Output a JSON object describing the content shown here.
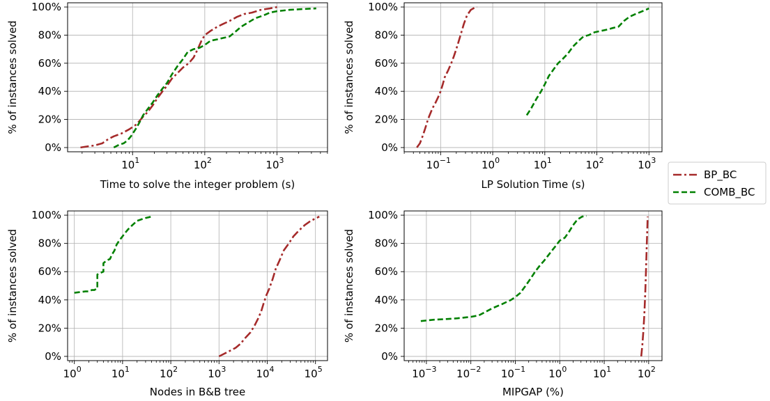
{
  "colors": {
    "bp_bc": "#a52a2a",
    "comb_bc": "#008000",
    "grid": "#b0b0b0"
  },
  "legend": {
    "placement": "right-center",
    "entries": [
      {
        "label": "BP_BC",
        "color": "#a52a2a",
        "style": "dash-dot"
      },
      {
        "label": "COMB_BC",
        "color": "#008000",
        "style": "dashed"
      }
    ]
  },
  "chart_data": [
    {
      "type": "line",
      "xlabel": "Time to solve the integer problem (s)",
      "ylabel": "% of instances solved",
      "xscale": "log",
      "xlim_exp": [
        0.1,
        3.7
      ],
      "ylim": [
        -3,
        103
      ],
      "xticks": [
        {
          "exp": 1,
          "label": "10"
        },
        {
          "exp": 2,
          "label": "10"
        },
        {
          "exp": 3,
          "label": "10"
        }
      ],
      "xtick_sup": [
        "1",
        "2",
        "3"
      ],
      "yticks": [
        0,
        20,
        40,
        60,
        80,
        100
      ],
      "ytick_labels": [
        "0%",
        "20%",
        "40%",
        "60%",
        "80%",
        "100%"
      ],
      "grid": true,
      "series": [
        {
          "name": "BP_BC",
          "x": [
            1.9,
            2.5,
            3,
            3.8,
            4.6,
            5.5,
            7,
            9,
            11,
            12.5,
            14,
            16,
            19,
            22,
            26,
            30,
            35,
            42,
            50,
            60,
            70,
            80,
            90,
            100,
            120,
            150,
            180,
            220,
            280,
            350,
            450,
            600,
            800,
            1000
          ],
          "y": [
            0,
            1,
            1.5,
            3,
            6,
            8,
            10,
            13,
            16,
            19,
            22,
            25,
            30,
            35,
            40,
            44,
            49,
            53,
            57,
            60,
            64,
            70,
            76,
            80,
            83,
            86,
            88,
            90,
            93,
            95,
            96,
            98,
            99,
            100
          ]
        },
        {
          "name": "COMB_BC",
          "x": [
            5.5,
            6.5,
            7.5,
            8.5,
            9.5,
            11,
            12.5,
            14,
            16,
            19,
            22,
            26,
            30,
            35,
            42,
            50,
            58,
            70,
            85,
            100,
            120,
            150,
            180,
            220,
            260,
            320,
            400,
            500,
            650,
            800,
            1000,
            1500,
            2200,
            3500
          ],
          "y": [
            0,
            2,
            3,
            5,
            8,
            13,
            18,
            23,
            27,
            32,
            37,
            42,
            46,
            52,
            58,
            63,
            68,
            70,
            71,
            73,
            76,
            77,
            78,
            79,
            82,
            86,
            89,
            92,
            94,
            96,
            97,
            98,
            98.5,
            99
          ]
        }
      ]
    },
    {
      "type": "line",
      "xlabel": "LP Solution Time (s)",
      "ylabel": "% of instances solved",
      "xscale": "log",
      "xlim_exp": [
        -1.7,
        3.25
      ],
      "ylim": [
        -3,
        103
      ],
      "xticks": [
        {
          "exp": -1,
          "label": "10"
        },
        {
          "exp": 0,
          "label": "10"
        },
        {
          "exp": 1,
          "label": "10"
        },
        {
          "exp": 2,
          "label": "10"
        },
        {
          "exp": 3,
          "label": "10"
        }
      ],
      "xtick_sup": [
        "−1",
        "0",
        "1",
        "2",
        "3"
      ],
      "yticks": [
        0,
        20,
        40,
        60,
        80,
        100
      ],
      "ytick_labels": [
        "0%",
        "20%",
        "40%",
        "60%",
        "80%",
        "100%"
      ],
      "grid": true,
      "series": [
        {
          "name": "BP_BC",
          "x": [
            0.035,
            0.04,
            0.045,
            0.05,
            0.055,
            0.06,
            0.07,
            0.08,
            0.09,
            0.1,
            0.11,
            0.12,
            0.14,
            0.16,
            0.18,
            0.2,
            0.22,
            0.25,
            0.28,
            0.32,
            0.38,
            0.45,
            0.5
          ],
          "y": [
            0,
            3,
            8,
            13,
            18,
            22,
            28,
            32,
            36,
            40,
            45,
            50,
            55,
            60,
            65,
            70,
            75,
            82,
            88,
            94,
            98,
            99.5,
            100
          ]
        },
        {
          "name": "COMB_BC",
          "x": [
            4.5,
            5.5,
            7,
            8.5,
            10,
            12,
            15,
            18,
            22,
            28,
            35,
            45,
            55,
            70,
            90,
            120,
            160,
            200,
            260,
            330,
            420,
            550,
            750,
            1000
          ],
          "y": [
            23,
            28,
            35,
            40,
            45,
            51,
            56,
            60,
            63,
            67,
            72,
            76,
            79,
            80,
            82,
            83,
            84,
            85,
            86,
            90,
            93,
            95,
            97,
            99
          ]
        }
      ]
    },
    {
      "type": "line",
      "xlabel": "Nodes in B&B tree",
      "ylabel": "% of instances solved",
      "xscale": "log",
      "xlim_exp": [
        -0.14,
        5.25
      ],
      "ylim": [
        -3,
        103
      ],
      "xticks": [
        {
          "exp": 0,
          "label": "10"
        },
        {
          "exp": 1,
          "label": "10"
        },
        {
          "exp": 2,
          "label": "10"
        },
        {
          "exp": 3,
          "label": "10"
        },
        {
          "exp": 4,
          "label": "10"
        },
        {
          "exp": 5,
          "label": "10"
        }
      ],
      "xtick_sup": [
        "0",
        "1",
        "2",
        "3",
        "4",
        "5"
      ],
      "yticks": [
        0,
        20,
        40,
        60,
        80,
        100
      ],
      "ytick_labels": [
        "0%",
        "20%",
        "40%",
        "60%",
        "80%",
        "100%"
      ],
      "grid": true,
      "series": [
        {
          "name": "BP_BC",
          "x": [
            1000,
            1300,
            1700,
            2200,
            2800,
            3500,
            4500,
            5500,
            6500,
            7500,
            8500,
            9500,
            11000,
            13000,
            15000,
            18000,
            22000,
            28000,
            35000,
            45000,
            60000,
            80000,
            120000
          ],
          "y": [
            0,
            2,
            4,
            6,
            9,
            13,
            17,
            22,
            27,
            32,
            38,
            43,
            48,
            55,
            62,
            68,
            75,
            80,
            85,
            89,
            93,
            96,
            99
          ]
        },
        {
          "name": "COMB_BC",
          "x": [
            1,
            1.3,
            1.7,
            2,
            2.3,
            2.6,
            2.9,
            3,
            3,
            3.4,
            4,
            4,
            4.7,
            5.5,
            6,
            6.8,
            7.5,
            8.5,
            9.5,
            11,
            13,
            16,
            20,
            30,
            40
          ],
          "y": [
            45,
            45.5,
            46,
            46,
            47,
            47,
            48,
            48,
            58,
            59,
            60,
            66,
            68,
            69,
            72,
            75,
            79,
            82,
            84,
            87,
            90,
            93,
            96,
            98,
            99
          ]
        }
      ]
    },
    {
      "type": "line",
      "xlabel": "MIPGAP (%)",
      "ylabel": "% of instances solved",
      "xscale": "log",
      "xlim_exp": [
        -3.5,
        2.3
      ],
      "ylim": [
        -3,
        103
      ],
      "xticks": [
        {
          "exp": -3,
          "label": "10"
        },
        {
          "exp": -2,
          "label": "10"
        },
        {
          "exp": -1,
          "label": "10"
        },
        {
          "exp": 0,
          "label": "10"
        },
        {
          "exp": 1,
          "label": "10"
        },
        {
          "exp": 2,
          "label": "10"
        }
      ],
      "xtick_sup": [
        "−3",
        "−2",
        "−1",
        "0",
        "1",
        "2"
      ],
      "yticks": [
        0,
        20,
        40,
        60,
        80,
        100
      ],
      "ytick_labels": [
        "0%",
        "20%",
        "40%",
        "60%",
        "80%",
        "100%"
      ],
      "grid": true,
      "series": [
        {
          "name": "BP_BC",
          "x": [
            68,
            72,
            76,
            80,
            84,
            87,
            90,
            93,
            95
          ],
          "y": [
            0,
            8,
            18,
            30,
            45,
            60,
            75,
            90,
            99
          ]
        },
        {
          "name": "COMB_BC",
          "x": [
            0.00075,
            0.0015,
            0.003,
            0.005,
            0.01,
            0.015,
            0.02,
            0.03,
            0.05,
            0.08,
            0.1,
            0.13,
            0.17,
            0.22,
            0.28,
            0.35,
            0.45,
            0.6,
            0.8,
            1.0,
            1.3,
            1.6,
            2.0,
            2.5,
            3.2,
            4.0
          ],
          "y": [
            25,
            26,
            26.5,
            27,
            28,
            29,
            31,
            34,
            37,
            40,
            42,
            45,
            50,
            55,
            60,
            64,
            68,
            73,
            78,
            82,
            84,
            88,
            93,
            97,
            99,
            99.5
          ]
        }
      ]
    }
  ]
}
